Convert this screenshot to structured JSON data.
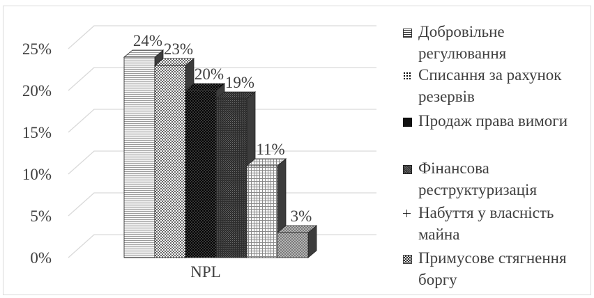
{
  "chart_data": {
    "type": "bar",
    "categories": [
      "NPL"
    ],
    "series": [
      {
        "name": "Добровільне регулювання",
        "values": [
          24
        ],
        "label": "24%",
        "color": "#d0d0d0",
        "pattern": "hlines"
      },
      {
        "name": "Списання за рахунок резервів",
        "values": [
          23
        ],
        "label": "23%",
        "color": "#000000",
        "pattern": "dots-white"
      },
      {
        "name": "Продаж права вимоги",
        "values": [
          20
        ],
        "label": "20%",
        "color": "#000000",
        "pattern": "dots-dark"
      },
      {
        "name": "Фінансова реструктуризація",
        "values": [
          19
        ],
        "label": "19%",
        "color": "#3a3a3a",
        "pattern": "hatch"
      },
      {
        "name": "Набуття у власність майна",
        "values": [
          11
        ],
        "label": "11%",
        "color": "#f0f0f0",
        "pattern": "grid"
      },
      {
        "name": "Примусове стягнення боргу",
        "values": [
          3
        ],
        "label": "3%",
        "color": "#8c8c8c",
        "pattern": "checker"
      }
    ],
    "yticks": [
      "0%",
      "5%",
      "10%",
      "15%",
      "20%",
      "25%"
    ],
    "ylim": [
      0,
      25
    ],
    "y_unit": "%",
    "grid": true,
    "legend_position": "right",
    "three_d": true
  }
}
